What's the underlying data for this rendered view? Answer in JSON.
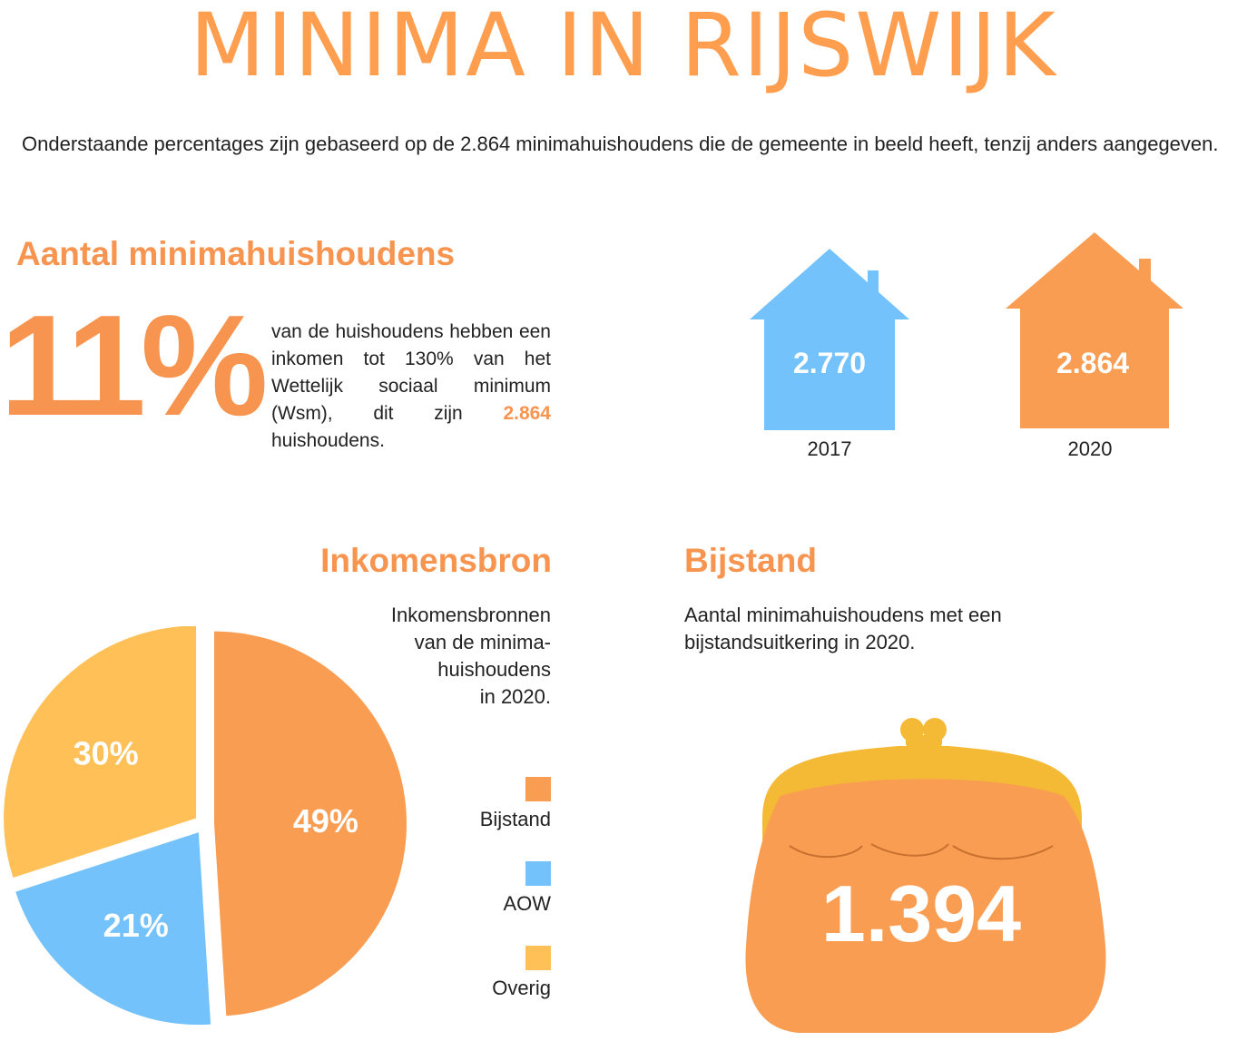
{
  "title": "MINIMA IN RIJSWIJK",
  "intro": "Onderstaande percentages zijn gebaseerd op de 2.864 minimahuishoudens die de gemeente in beeld heeft, tenzij anders aangegeven.",
  "aantal": {
    "heading": "Aantal minimahuishoudens",
    "big_pct": "11%",
    "desc_pre": "van de huishoudens hebben een inkomen tot 130% van het Wettelijk sociaal minimum (Wsm), dit zijn",
    "desc_highlight": "2.864",
    "desc_post": "huishoudens."
  },
  "houses": [
    {
      "value": "2.770",
      "year": "2017",
      "color": "#73c2fb"
    },
    {
      "value": "2.864",
      "year": "2020",
      "color": "#f99d52"
    }
  ],
  "inkomensbron": {
    "heading": "Inkomensbron",
    "desc_lines": [
      "Inkomensbronnen",
      "van de minima-",
      "huishoudens",
      "in 2020."
    ]
  },
  "bijstand": {
    "heading": "Bijstand",
    "desc_lines": [
      "Aantal minimahuishoudens met een",
      "bijstandsuitkering in 2020."
    ],
    "value": "1.394"
  },
  "colors": {
    "accent": "#f7944f",
    "orange": "#f99d52",
    "blue": "#73c2fb",
    "yellow": "#fec057",
    "purse_frame": "#f4b935"
  },
  "chart_data": {
    "type": "pie",
    "slices": [
      {
        "label": "Bijstand",
        "value": 49,
        "text": "49%",
        "color": "#f99d52"
      },
      {
        "label": "AOW",
        "value": 21,
        "text": "21%",
        "color": "#73c2fb"
      },
      {
        "label": "Overig",
        "value": 30,
        "text": "30%",
        "color": "#fec057"
      }
    ]
  }
}
